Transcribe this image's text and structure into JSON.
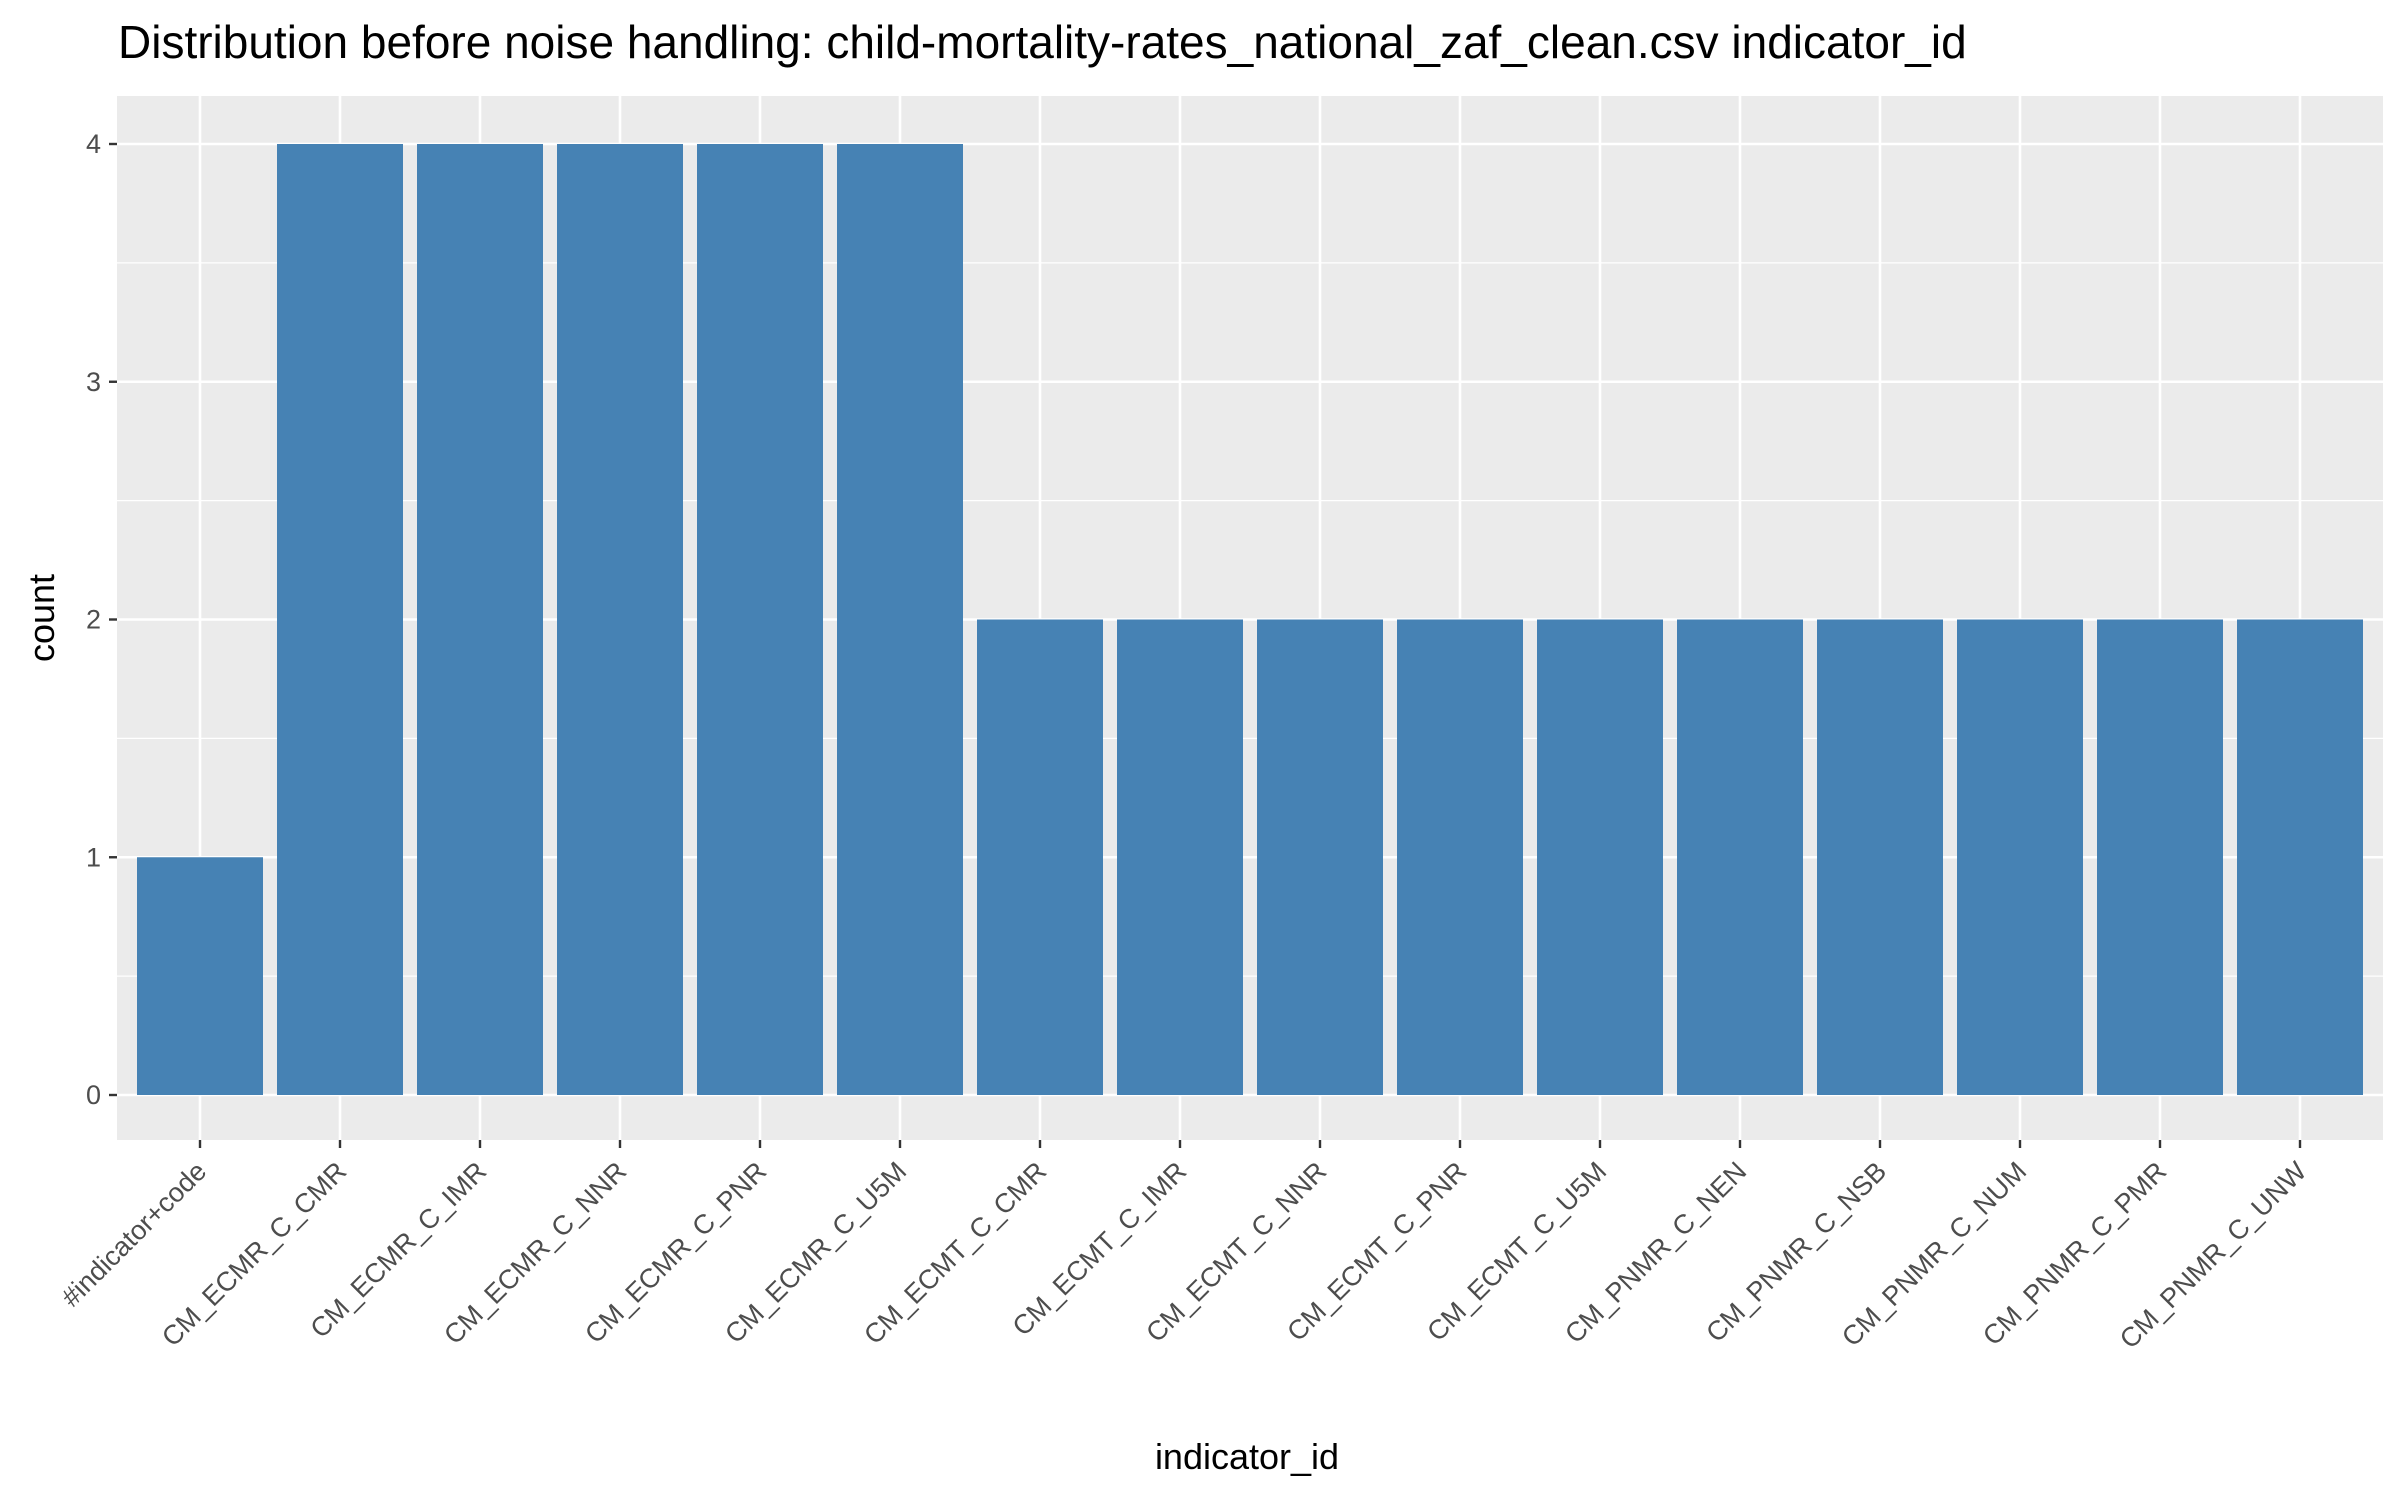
{
  "chart_data": {
    "type": "bar",
    "title": "Distribution before noise handling: child-mortality-rates_national_zaf_clean.csv indicator_id",
    "xlabel": "indicator_id",
    "ylabel": "count",
    "categories": [
      "#indicator+code",
      "CM_ECMR_C_CMR",
      "CM_ECMR_C_IMR",
      "CM_ECMR_C_NNR",
      "CM_ECMR_C_PNR",
      "CM_ECMR_C_U5M",
      "CM_ECMT_C_CMR",
      "CM_ECMT_C_IMR",
      "CM_ECMT_C_NNR",
      "CM_ECMT_C_PNR",
      "CM_ECMT_C_U5M",
      "CM_PNMR_C_NEN",
      "CM_PNMR_C_NSB",
      "CM_PNMR_C_NUM",
      "CM_PNMR_C_PMR",
      "CM_PNMR_C_UNW"
    ],
    "values": [
      1,
      4,
      4,
      4,
      4,
      4,
      2,
      2,
      2,
      2,
      2,
      2,
      2,
      2,
      2,
      2
    ],
    "ylim": [
      0,
      4
    ],
    "yticks": [
      "0",
      "1",
      "2",
      "3",
      "4"
    ],
    "grid": true,
    "bar_color": "#4682B4",
    "panel_background": "#EBEBEB",
    "grid_color": "#FFFFFF"
  }
}
